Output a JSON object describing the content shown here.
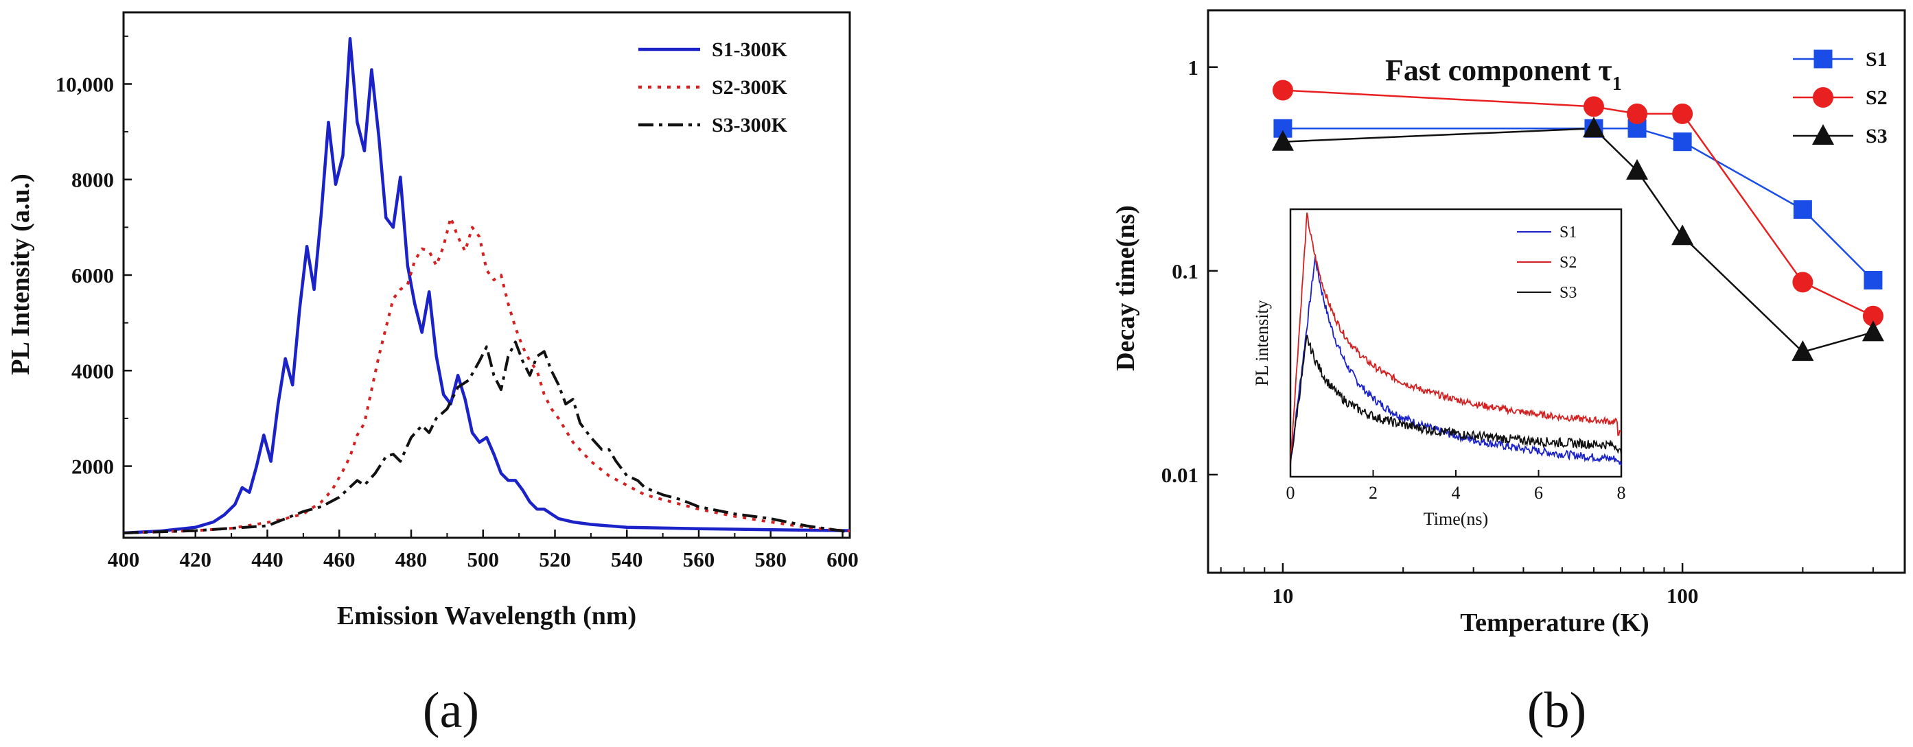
{
  "chart_data": [
    {
      "id": "a",
      "type": "line",
      "panel_label": "(a)",
      "xlabel": "Emission Wavelength (nm)",
      "ylabel": "PL Intensity (a.u.)",
      "xlim": [
        400,
        602
      ],
      "ylim": [
        500,
        11500
      ],
      "x_ticks": [
        400,
        420,
        440,
        460,
        480,
        500,
        520,
        540,
        560,
        580,
        600
      ],
      "y_ticks": [
        2000,
        4000,
        6000,
        8000,
        10000
      ],
      "y_tick_labels": [
        "2000",
        "4000",
        "6000",
        "8000",
        "10,000"
      ],
      "legend_position": "top-right",
      "series": [
        {
          "name": "S1-300K",
          "color": "#1a22c8",
          "style": "solid",
          "x": [
            400,
            410,
            420,
            425,
            428,
            431,
            433,
            435,
            437,
            439,
            441,
            443,
            445,
            447,
            449,
            451,
            453,
            455,
            457,
            459,
            461,
            463,
            465,
            467,
            469,
            471,
            473,
            475,
            477,
            479,
            481,
            483,
            485,
            487,
            489,
            491,
            493,
            495,
            497,
            499,
            501,
            503,
            505,
            507,
            509,
            511,
            513,
            515,
            517,
            519,
            521,
            525,
            530,
            540,
            560,
            580,
            602
          ],
          "y": [
            600,
            640,
            720,
            830,
            980,
            1200,
            1550,
            1450,
            2000,
            2650,
            2100,
            3300,
            4250,
            3700,
            5300,
            6600,
            5700,
            7300,
            9200,
            7900,
            8500,
            10950,
            9200,
            8600,
            10300,
            8900,
            7200,
            7000,
            8050,
            6200,
            5400,
            4800,
            5650,
            4300,
            3500,
            3300,
            3900,
            3400,
            2700,
            2500,
            2600,
            2250,
            1850,
            1700,
            1700,
            1500,
            1250,
            1100,
            1100,
            1000,
            900,
            830,
            780,
            720,
            690,
            670,
            650
          ]
        },
        {
          "name": "S2-300K",
          "color": "#d42020",
          "style": "dotted",
          "x": [
            400,
            420,
            430,
            440,
            445,
            450,
            455,
            458,
            461,
            463,
            465,
            467,
            469,
            471,
            473,
            475,
            477,
            479,
            481,
            483,
            485,
            487,
            489,
            491,
            493,
            495,
            497,
            499,
            501,
            503,
            505,
            507,
            509,
            511,
            513,
            515,
            517,
            519,
            521,
            525,
            530,
            535,
            540,
            545,
            550,
            555,
            560,
            570,
            580,
            590,
            602
          ],
          "y": [
            600,
            650,
            700,
            820,
            900,
            1000,
            1250,
            1500,
            1900,
            2200,
            2650,
            2900,
            3600,
            4300,
            4900,
            5500,
            5700,
            5800,
            6300,
            6550,
            6500,
            6200,
            6600,
            7200,
            6800,
            6500,
            7000,
            6800,
            6100,
            5900,
            6000,
            5400,
            4900,
            4500,
            4200,
            4000,
            3500,
            3200,
            3000,
            2500,
            2100,
            1800,
            1600,
            1400,
            1300,
            1200,
            1100,
            950,
            830,
            720,
            640
          ]
        },
        {
          "name": "S3-300K",
          "color": "#111111",
          "style": "dashdot",
          "x": [
            400,
            420,
            440,
            450,
            455,
            460,
            465,
            467,
            470,
            473,
            475,
            477,
            480,
            483,
            485,
            487,
            490,
            493,
            496,
            499,
            501,
            503,
            505,
            507,
            509,
            511,
            513,
            515,
            517,
            519,
            521,
            523,
            525,
            527,
            530,
            533,
            535,
            537,
            540,
            543,
            545,
            550,
            555,
            560,
            570,
            580,
            590,
            602
          ],
          "y": [
            600,
            650,
            750,
            1050,
            1150,
            1350,
            1700,
            1600,
            1850,
            2200,
            2250,
            2100,
            2600,
            2850,
            2700,
            3000,
            3200,
            3650,
            3800,
            4200,
            4500,
            3900,
            3600,
            4300,
            4600,
            4200,
            3900,
            4300,
            4400,
            4000,
            3700,
            3300,
            3400,
            2900,
            2600,
            2350,
            2350,
            2100,
            1800,
            1700,
            1550,
            1400,
            1300,
            1150,
            1000,
            900,
            750,
            620
          ]
        }
      ]
    },
    {
      "id": "b",
      "type": "line",
      "panel_label": "(b)",
      "scale": "log-log",
      "title": "Fast component τ",
      "title_subscript": "1",
      "xlabel": "Temperature (K)",
      "ylabel": "Decay time(ns)",
      "xlim": [
        6.5,
        360
      ],
      "ylim": [
        0.0033,
        1.9
      ],
      "x_ticks": [
        10,
        100
      ],
      "x_tick_labels": [
        "10",
        "100"
      ],
      "y_ticks": [
        0.01,
        0.1,
        1
      ],
      "y_tick_labels": [
        "0.01",
        "0.1",
        "1"
      ],
      "legend_position": "top-right",
      "series": [
        {
          "name": "S1",
          "color": "#1a4ce8",
          "marker": "square",
          "line_color": "#1a4ce8",
          "x": [
            10,
            60,
            77,
            100,
            200,
            300
          ],
          "y": [
            0.5,
            0.5,
            0.5,
            0.43,
            0.2,
            0.09
          ]
        },
        {
          "name": "S2",
          "color": "#e82020",
          "marker": "circle",
          "line_color": "#e82020",
          "x": [
            10,
            60,
            77,
            100,
            200,
            300
          ],
          "y": [
            0.77,
            0.64,
            0.59,
            0.59,
            0.088,
            0.06
          ]
        },
        {
          "name": "S3",
          "color": "#111111",
          "marker": "triangle",
          "line_color": "#111111",
          "x": [
            10,
            60,
            77,
            100,
            200,
            300
          ],
          "y": [
            0.43,
            0.5,
            0.31,
            0.148,
            0.04,
            0.05
          ]
        }
      ],
      "inset": {
        "type": "line",
        "xlabel": "Time(ns)",
        "ylabel": "PL intensity",
        "xlim": [
          0,
          8
        ],
        "ylim": [
          0,
          1
        ],
        "x_ticks": [
          0,
          2,
          4,
          6,
          8
        ],
        "legend_position": "top-right",
        "series": [
          {
            "name": "S1",
            "color": "#1a22c8",
            "peak": 0.82,
            "peak_t": 0.6,
            "tail": 0.03,
            "noise": 0.03
          },
          {
            "name": "S2",
            "color": "#d42020",
            "peak": 0.98,
            "peak_t": 0.4,
            "tail": 0.17,
            "noise": 0.025
          },
          {
            "name": "S3",
            "color": "#111111",
            "peak": 0.52,
            "peak_t": 0.4,
            "tail": 0.1,
            "noise": 0.035
          }
        ]
      }
    }
  ]
}
